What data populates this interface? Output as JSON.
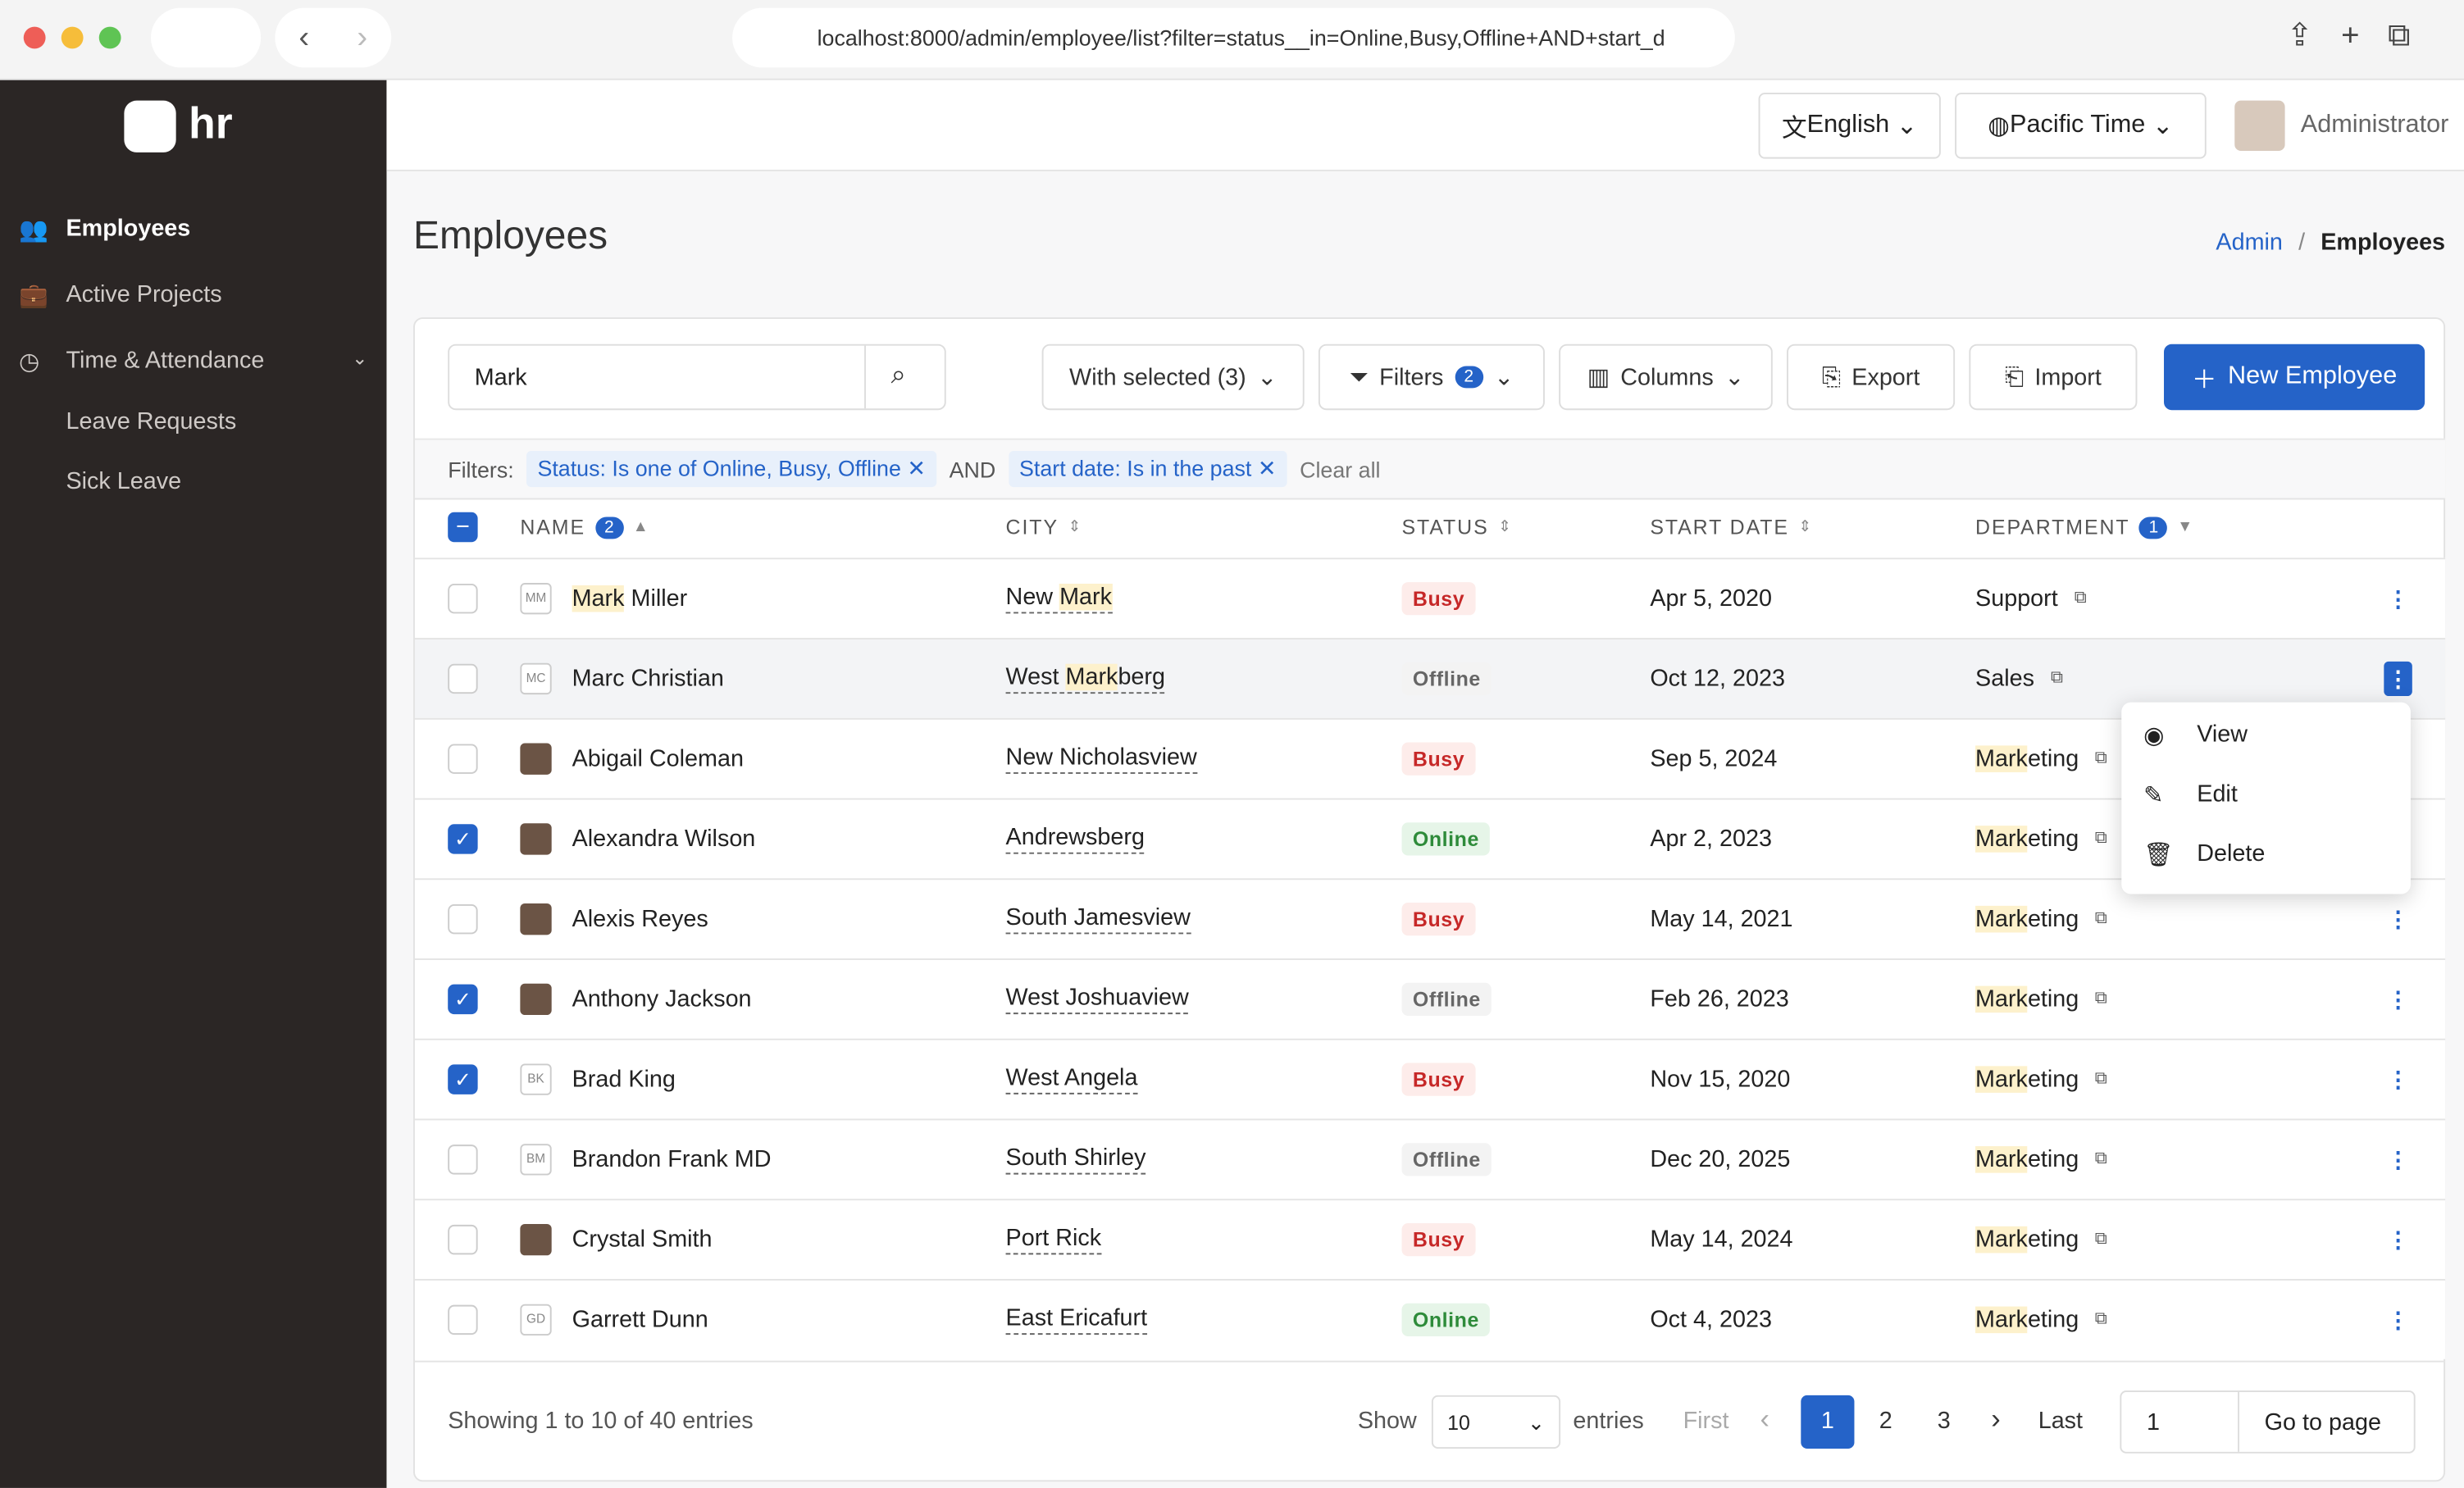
{
  "browser": {
    "url": "localhost:8000/admin/employee/list?filter=status__in=Online,Busy,Offline+AND+start_d"
  },
  "sidebar": {
    "brand": "hr",
    "nav": [
      {
        "label": "Employees",
        "active": true
      },
      {
        "label": "Active Projects"
      },
      {
        "label": "Time & Attendance"
      },
      {
        "label": "Leave Requests",
        "sub": true
      },
      {
        "label": "Sick Leave",
        "sub": true
      }
    ]
  },
  "topbar": {
    "language": "English",
    "timezone": "Pacific Time",
    "user": "Administrator"
  },
  "page": {
    "title": "Employees",
    "breadcrumb": [
      "Admin",
      "Employees"
    ]
  },
  "toolbar": {
    "search": "Mark",
    "with_selected": "With selected (3)",
    "filters": "Filters",
    "filters_count": "2",
    "columns": "Columns",
    "export": "Export",
    "import": "Import",
    "new": "New Employee"
  },
  "filters": {
    "label": "Filters:",
    "chips": [
      "Status: Is one of Online, Busy, Offline",
      "Start date: Is in the past"
    ],
    "joiner": "AND",
    "clear": "Clear all"
  },
  "table": {
    "headers": [
      {
        "label": "NAME",
        "badge": "2"
      },
      {
        "label": "CITY"
      },
      {
        "label": "STATUS"
      },
      {
        "label": "START DATE"
      },
      {
        "label": "DEPARTMENT",
        "badge": "1"
      }
    ],
    "menu_row": 1,
    "rows": [
      {
        "initials": "MM",
        "name": "Mark Miller",
        "city": "New Mark",
        "status": "Busy",
        "start": "Apr 5, 2020",
        "department": "Support",
        "checked": false
      },
      {
        "initials": "MC",
        "name": "Marc Christian",
        "city": "West Markberg",
        "status": "Offline",
        "start": "Oct 12, 2023",
        "department": "Sales",
        "checked": false
      },
      {
        "initials": null,
        "name": "Abigail Coleman",
        "city": "New Nicholasview",
        "status": "Busy",
        "start": "Sep 5, 2024",
        "department": "Marketing",
        "checked": false
      },
      {
        "initials": null,
        "name": "Alexandra Wilson",
        "city": "Andrewsberg",
        "status": "Online",
        "start": "Apr 2, 2023",
        "department": "Marketing",
        "checked": true
      },
      {
        "initials": null,
        "name": "Alexis Reyes",
        "city": "South Jamesview",
        "status": "Busy",
        "start": "May 14, 2021",
        "department": "Marketing",
        "checked": false
      },
      {
        "initials": null,
        "name": "Anthony Jackson",
        "city": "West Joshuaview",
        "status": "Offline",
        "start": "Feb 26, 2023",
        "department": "Marketing",
        "checked": true
      },
      {
        "initials": "BK",
        "name": "Brad King",
        "city": "West Angela",
        "status": "Busy",
        "start": "Nov 15, 2020",
        "department": "Marketing",
        "checked": true
      },
      {
        "initials": "BM",
        "name": "Brandon Frank MD",
        "city": "South Shirley",
        "status": "Offline",
        "start": "Dec 20, 2025",
        "department": "Marketing",
        "checked": false
      },
      {
        "initials": null,
        "name": "Crystal Smith",
        "city": "Port Rick",
        "status": "Busy",
        "start": "May 14, 2024",
        "department": "Marketing",
        "checked": false
      },
      {
        "initials": "GD",
        "name": "Garrett Dunn",
        "city": "East Ericafurt",
        "status": "Online",
        "start": "Oct 4, 2023",
        "department": "Marketing",
        "checked": false
      }
    ]
  },
  "menu": [
    "View",
    "Edit",
    "Delete"
  ],
  "footer": {
    "showing": "Showing 1 to 10 of 40 entries",
    "show": "Show",
    "page_size": "10",
    "entries": "entries",
    "first": "First",
    "pages": [
      "1",
      "2",
      "3"
    ],
    "current_page": 0,
    "last": "Last",
    "goto_value": "1",
    "goto": "Go to page"
  }
}
